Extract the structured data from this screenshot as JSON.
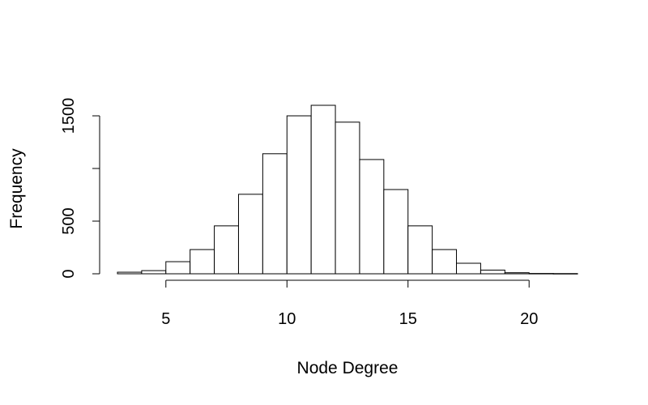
{
  "chart_data": {
    "type": "bar",
    "subtype": "histogram",
    "title": "",
    "xlabel": "Node Degree",
    "ylabel": "Frequency",
    "bin_edges": [
      3,
      4,
      5,
      6,
      7,
      8,
      9,
      10,
      11,
      12,
      13,
      14,
      15,
      16,
      17,
      18,
      19,
      20,
      21,
      22
    ],
    "values": [
      15,
      30,
      115,
      230,
      455,
      755,
      1140,
      1500,
      1600,
      1440,
      1085,
      800,
      455,
      230,
      100,
      35,
      10,
      3,
      2
    ],
    "xlim": [
      3,
      22
    ],
    "ylim": [
      0,
      1600
    ],
    "x_ticks": [
      5,
      10,
      15,
      20
    ],
    "x_tick_labels": [
      "5",
      "10",
      "15",
      "20"
    ],
    "y_ticks": [
      0,
      500,
      1000,
      1500
    ],
    "y_tick_labels": [
      "0",
      "500",
      "",
      "1500"
    ],
    "grid": false,
    "bar_fill": "#ffffff",
    "bar_stroke": "#000000"
  }
}
